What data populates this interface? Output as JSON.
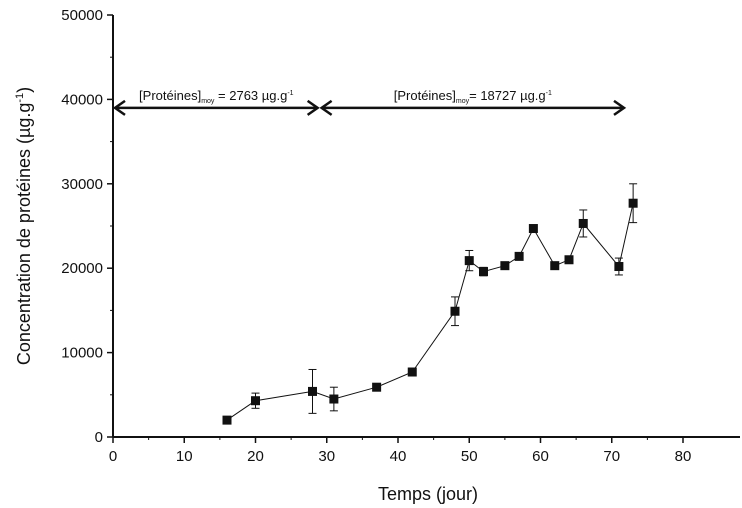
{
  "chart_data": {
    "type": "scatter",
    "xlabel": "Temps (jour)",
    "ylabel_parts": {
      "main": "Concentration de protéines (µg.g",
      "sup": "-1",
      "close": ")"
    },
    "xlim": [
      0,
      88
    ],
    "ylim": [
      0,
      50000
    ],
    "x_ticks": [
      0,
      10,
      20,
      30,
      40,
      50,
      60,
      70,
      80
    ],
    "y_ticks": [
      0,
      10000,
      20000,
      30000,
      40000,
      50000
    ],
    "grid": false,
    "series": [
      {
        "marker": "square",
        "line": true,
        "color": "#111111",
        "points": [
          {
            "x": 16,
            "y": 2000,
            "err": 0
          },
          {
            "x": 20,
            "y": 4300,
            "err": 900
          },
          {
            "x": 28,
            "y": 5400,
            "err": 2600
          },
          {
            "x": 31,
            "y": 4500,
            "err": 1400
          },
          {
            "x": 37,
            "y": 5900,
            "err": 0
          },
          {
            "x": 42,
            "y": 7700,
            "err": 0
          },
          {
            "x": 48,
            "y": 14900,
            "err": 1700
          },
          {
            "x": 50,
            "y": 20900,
            "err": 1200
          },
          {
            "x": 52,
            "y": 19600,
            "err": 500
          },
          {
            "x": 55,
            "y": 20300,
            "err": 0
          },
          {
            "x": 57,
            "y": 21400,
            "err": 0
          },
          {
            "x": 59,
            "y": 24700,
            "err": 0
          },
          {
            "x": 62,
            "y": 20300,
            "err": 0
          },
          {
            "x": 64,
            "y": 21000,
            "err": 400
          },
          {
            "x": 66,
            "y": 25300,
            "err": 1600
          },
          {
            "x": 71,
            "y": 20200,
            "err": 1000
          },
          {
            "x": 73,
            "y": 27700,
            "err": 2300
          }
        ]
      }
    ],
    "annotations": [
      {
        "main": "[Protéines]",
        "sub": "moy",
        "rest": " = 2763 µg.g",
        "sup": "-1",
        "x_start": 0,
        "x_end": 29,
        "y": 39000
      },
      {
        "main": "[Protéines]",
        "sub": "moy",
        "rest": "= 18727 µg.g",
        "sup": "-1",
        "x_start": 29,
        "x_end": 72,
        "y": 39000
      }
    ]
  }
}
